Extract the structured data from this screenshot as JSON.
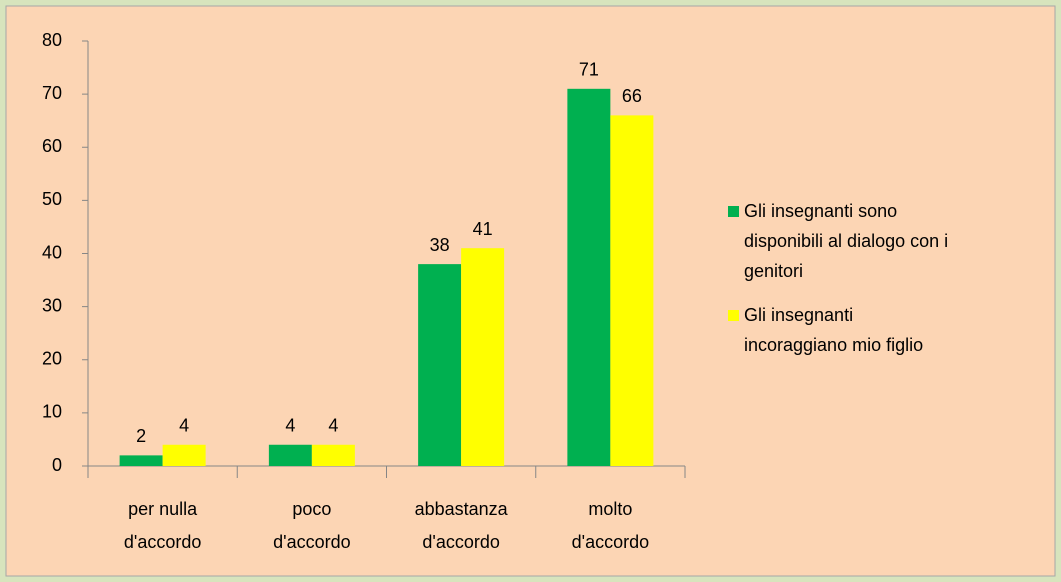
{
  "chart_data": {
    "type": "bar",
    "categories": [
      "per nulla\nd'accordo",
      "poco\nd'accordo",
      "abbastanza\nd'accordo",
      "molto\nd'accordo"
    ],
    "series": [
      {
        "name": "Gli insegnanti sono disponibili al dialogo con i genitori",
        "color": "#00b050",
        "values": [
          2,
          4,
          38,
          71
        ]
      },
      {
        "name": "Gli insegnanti incoraggiano mio figlio",
        "color": "#ffff00",
        "values": [
          4,
          4,
          41,
          66
        ]
      }
    ],
    "ylim": [
      0,
      80
    ],
    "yticks": [
      0,
      10,
      20,
      30,
      40,
      50,
      60,
      70,
      80
    ],
    "legend": "right"
  }
}
